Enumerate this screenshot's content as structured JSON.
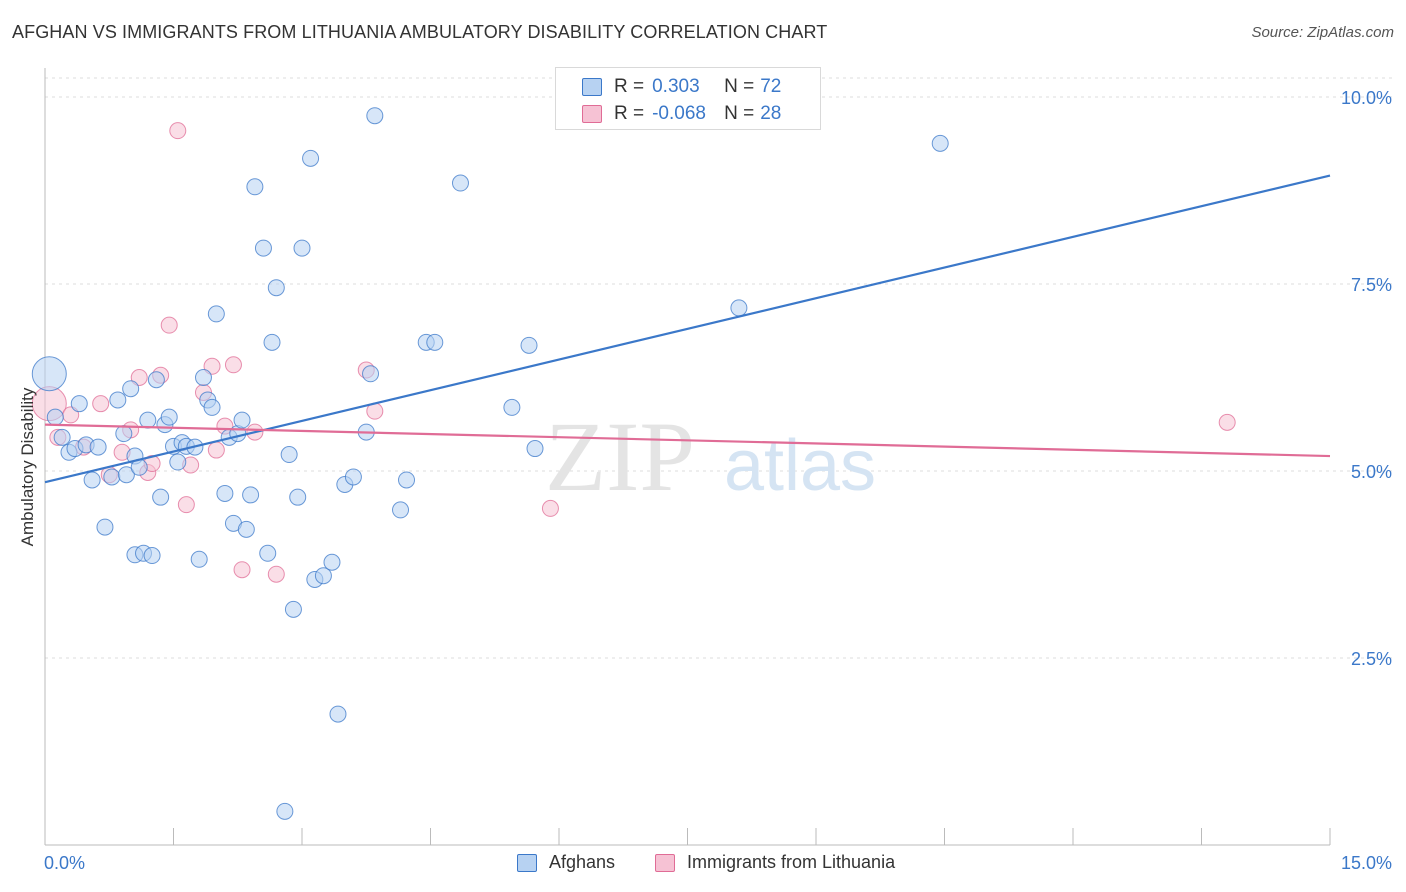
{
  "title": "AFGHAN VS IMMIGRANTS FROM LITHUANIA AMBULATORY DISABILITY CORRELATION CHART",
  "source": "Source: ZipAtlas.com",
  "watermark": {
    "zip": "ZIP",
    "atlas": "atlas"
  },
  "legend": {
    "rows": [
      {
        "r_label": "R =",
        "r_value": "0.303",
        "n_label": "N =",
        "n_value": "72"
      },
      {
        "r_label": "R =",
        "r_value": "-0.068",
        "n_label": "N =",
        "n_value": "28"
      }
    ]
  },
  "bottom_legend": {
    "afghans": "Afghans",
    "lithuania": "Immigrants from Lithuania"
  },
  "chart_data": {
    "type": "scatter",
    "title": "AFGHAN VS IMMIGRANTS FROM LITHUANIA AMBULATORY DISABILITY CORRELATION CHART",
    "xlabel": "",
    "ylabel": "Ambulatory Disability",
    "xlim": [
      0,
      15
    ],
    "ylim": [
      0,
      10.5
    ],
    "x_tick_labels": [
      "0.0%",
      "15.0%"
    ],
    "y_ticks": [
      2.5,
      5.0,
      7.5,
      10.0
    ],
    "y_tick_labels": [
      "2.5%",
      "5.0%",
      "7.5%",
      "10.0%"
    ],
    "colors": {
      "afghans": "#3b78c9",
      "afghans_fill": "#b7d2f2",
      "lithuania": "#e06c96",
      "lithuania_fill": "#f6c2d4"
    },
    "series": [
      {
        "name": "Afghans",
        "trend": {
          "x": [
            0,
            15
          ],
          "y": [
            4.85,
            8.95
          ]
        },
        "points": [
          [
            0.05,
            6.3,
            "big"
          ],
          [
            0.12,
            5.72
          ],
          [
            0.2,
            5.45
          ],
          [
            0.28,
            5.25
          ],
          [
            0.35,
            5.3
          ],
          [
            0.4,
            5.9
          ],
          [
            0.48,
            5.35
          ],
          [
            0.55,
            4.88
          ],
          [
            0.62,
            5.32
          ],
          [
            0.7,
            4.25
          ],
          [
            0.78,
            4.92
          ],
          [
            0.85,
            5.95
          ],
          [
            0.92,
            5.5
          ],
          [
            0.95,
            4.95
          ],
          [
            1.0,
            6.1
          ],
          [
            1.05,
            5.2
          ],
          [
            1.1,
            5.05
          ],
          [
            1.05,
            3.88
          ],
          [
            1.15,
            3.9
          ],
          [
            1.2,
            5.68
          ],
          [
            1.25,
            3.87
          ],
          [
            1.3,
            6.22
          ],
          [
            1.35,
            4.65
          ],
          [
            1.4,
            5.62
          ],
          [
            1.45,
            5.72
          ],
          [
            1.5,
            5.33
          ],
          [
            1.55,
            5.12
          ],
          [
            1.6,
            5.38
          ],
          [
            1.65,
            5.33
          ],
          [
            1.75,
            5.32
          ],
          [
            1.8,
            3.82
          ],
          [
            1.85,
            6.25
          ],
          [
            1.9,
            5.95
          ],
          [
            1.95,
            5.85
          ],
          [
            2.0,
            7.1
          ],
          [
            2.1,
            4.7
          ],
          [
            2.15,
            5.45
          ],
          [
            2.2,
            4.3
          ],
          [
            2.25,
            5.5
          ],
          [
            2.3,
            5.68
          ],
          [
            2.35,
            4.22
          ],
          [
            2.4,
            4.68
          ],
          [
            2.45,
            8.8
          ],
          [
            2.55,
            7.98
          ],
          [
            2.6,
            3.9
          ],
          [
            2.65,
            6.72
          ],
          [
            2.7,
            7.45
          ],
          [
            2.8,
            0.45
          ],
          [
            2.85,
            5.22
          ],
          [
            2.9,
            3.15
          ],
          [
            2.95,
            4.65
          ],
          [
            3.0,
            7.98
          ],
          [
            3.1,
            9.18
          ],
          [
            3.15,
            3.55
          ],
          [
            3.25,
            3.6
          ],
          [
            3.35,
            3.78
          ],
          [
            3.42,
            1.75
          ],
          [
            3.5,
            4.82
          ],
          [
            3.6,
            4.92
          ],
          [
            3.75,
            5.52
          ],
          [
            3.8,
            6.3
          ],
          [
            3.85,
            9.75
          ],
          [
            4.15,
            4.48
          ],
          [
            4.22,
            4.88
          ],
          [
            4.45,
            6.72
          ],
          [
            4.55,
            6.72
          ],
          [
            4.85,
            8.85
          ],
          [
            5.45,
            5.85
          ],
          [
            5.65,
            6.68
          ],
          [
            5.72,
            5.3
          ],
          [
            8.1,
            7.18
          ],
          [
            10.45,
            9.38
          ]
        ]
      },
      {
        "name": "Immigrants from Lithuania",
        "trend": {
          "x": [
            0,
            15
          ],
          "y": [
            5.62,
            5.2
          ]
        },
        "points": [
          [
            0.05,
            5.9,
            "big"
          ],
          [
            0.15,
            5.45
          ],
          [
            0.3,
            5.75
          ],
          [
            0.45,
            5.32
          ],
          [
            0.65,
            5.9
          ],
          [
            0.75,
            4.95
          ],
          [
            0.9,
            5.25
          ],
          [
            1.0,
            5.55
          ],
          [
            1.1,
            6.25
          ],
          [
            1.2,
            4.98
          ],
          [
            1.25,
            5.1
          ],
          [
            1.35,
            6.28
          ],
          [
            1.45,
            6.95
          ],
          [
            1.55,
            9.55
          ],
          [
            1.65,
            4.55
          ],
          [
            1.7,
            5.08
          ],
          [
            1.85,
            6.05
          ],
          [
            1.95,
            6.4
          ],
          [
            2.0,
            5.28
          ],
          [
            2.1,
            5.6
          ],
          [
            2.2,
            6.42
          ],
          [
            2.3,
            3.68
          ],
          [
            2.45,
            5.52
          ],
          [
            2.7,
            3.62
          ],
          [
            3.75,
            6.35
          ],
          [
            3.85,
            5.8
          ],
          [
            5.9,
            4.5
          ],
          [
            13.8,
            5.65
          ]
        ]
      }
    ]
  }
}
